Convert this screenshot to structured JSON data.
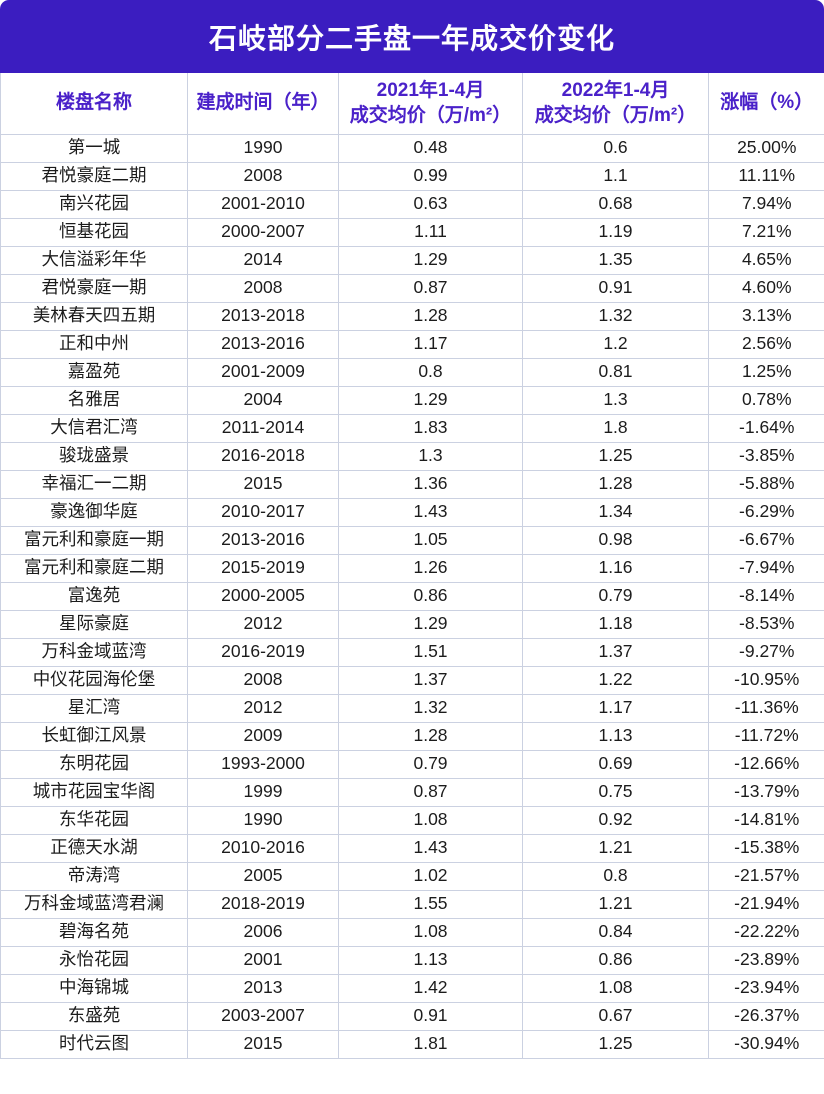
{
  "title": "石岐部分二手盘一年成交价变化",
  "colors": {
    "banner": "#3B1DC0",
    "header_text": "#4A21C9",
    "border": "#CBD1E1",
    "body_text": "#1C1C1C",
    "title_text": "#FFFFFF"
  },
  "chart_data": {
    "type": "table",
    "title": "石岐部分二手盘一年成交价变化",
    "columns": [
      "楼盘名称",
      "建成时间（年）",
      "2021年1-4月\n成交均价（万/m²）",
      "2022年1-4月\n成交均价（万/m²）",
      "涨幅（%）"
    ],
    "rows": [
      [
        "第一城",
        "1990",
        "0.48",
        "0.6",
        "25.00%"
      ],
      [
        "君悦豪庭二期",
        "2008",
        "0.99",
        "1.1",
        "11.11%"
      ],
      [
        "南兴花园",
        "2001-2010",
        "0.63",
        "0.68",
        "7.94%"
      ],
      [
        "恒基花园",
        "2000-2007",
        "1.11",
        "1.19",
        "7.21%"
      ],
      [
        "大信溢彩年华",
        "2014",
        "1.29",
        "1.35",
        "4.65%"
      ],
      [
        "君悦豪庭一期",
        "2008",
        "0.87",
        "0.91",
        "4.60%"
      ],
      [
        "美林春天四五期",
        "2013-2018",
        "1.28",
        "1.32",
        "3.13%"
      ],
      [
        "正和中州",
        "2013-2016",
        "1.17",
        "1.2",
        "2.56%"
      ],
      [
        "嘉盈苑",
        "2001-2009",
        "0.8",
        "0.81",
        "1.25%"
      ],
      [
        "名雅居",
        "2004",
        "1.29",
        "1.3",
        "0.78%"
      ],
      [
        "大信君汇湾",
        "2011-2014",
        "1.83",
        "1.8",
        "-1.64%"
      ],
      [
        "骏珑盛景",
        "2016-2018",
        "1.3",
        "1.25",
        "-3.85%"
      ],
      [
        "幸福汇一二期",
        "2015",
        "1.36",
        "1.28",
        "-5.88%"
      ],
      [
        "豪逸御华庭",
        "2010-2017",
        "1.43",
        "1.34",
        "-6.29%"
      ],
      [
        "富元利和豪庭一期",
        "2013-2016",
        "1.05",
        "0.98",
        "-6.67%"
      ],
      [
        "富元利和豪庭二期",
        "2015-2019",
        "1.26",
        "1.16",
        "-7.94%"
      ],
      [
        "富逸苑",
        "2000-2005",
        "0.86",
        "0.79",
        "-8.14%"
      ],
      [
        "星际豪庭",
        "2012",
        "1.29",
        "1.18",
        "-8.53%"
      ],
      [
        "万科金域蓝湾",
        "2016-2019",
        "1.51",
        "1.37",
        "-9.27%"
      ],
      [
        "中仪花园海伦堡",
        "2008",
        "1.37",
        "1.22",
        "-10.95%"
      ],
      [
        "星汇湾",
        "2012",
        "1.32",
        "1.17",
        "-11.36%"
      ],
      [
        "长虹御江风景",
        "2009",
        "1.28",
        "1.13",
        "-11.72%"
      ],
      [
        "东明花园",
        "1993-2000",
        "0.79",
        "0.69",
        "-12.66%"
      ],
      [
        "城市花园宝华阁",
        "1999",
        "0.87",
        "0.75",
        "-13.79%"
      ],
      [
        "东华花园",
        "1990",
        "1.08",
        "0.92",
        "-14.81%"
      ],
      [
        "正德天水湖",
        "2010-2016",
        "1.43",
        "1.21",
        "-15.38%"
      ],
      [
        "帝涛湾",
        "2005",
        "1.02",
        "0.8",
        "-21.57%"
      ],
      [
        "万科金域蓝湾君澜",
        "2018-2019",
        "1.55",
        "1.21",
        "-21.94%"
      ],
      [
        "碧海名苑",
        "2006",
        "1.08",
        "0.84",
        "-22.22%"
      ],
      [
        "永怡花园",
        "2001",
        "1.13",
        "0.86",
        "-23.89%"
      ],
      [
        "中海锦城",
        "2013",
        "1.42",
        "1.08",
        "-23.94%"
      ],
      [
        "东盛苑",
        "2003-2007",
        "0.91",
        "0.67",
        "-26.37%"
      ],
      [
        "时代云图",
        "2015",
        "1.81",
        "1.25",
        "-30.94%"
      ]
    ]
  }
}
